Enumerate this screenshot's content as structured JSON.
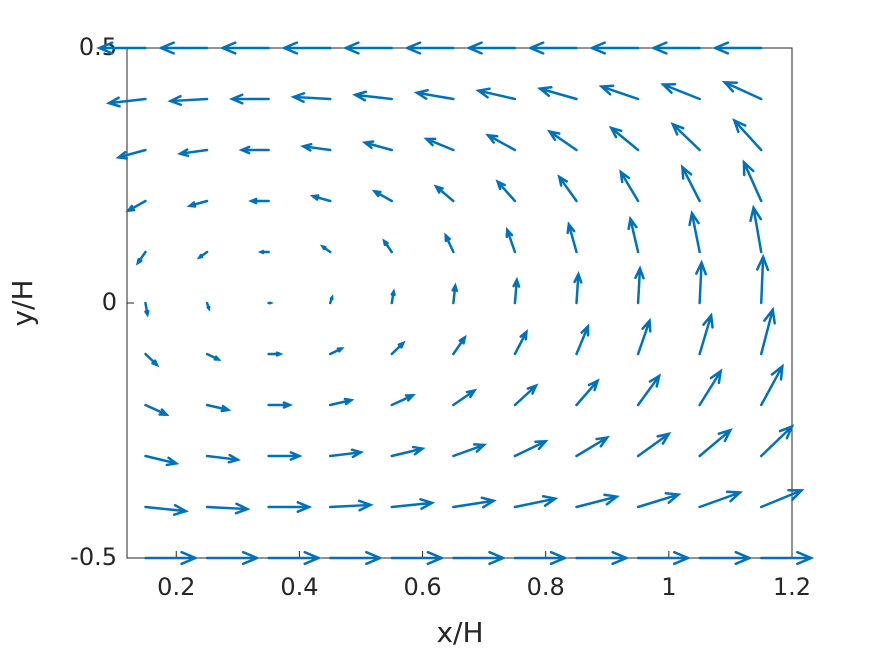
{
  "chart_data": {
    "type": "quiver",
    "xlabel": "x/H",
    "ylabel": "y/H",
    "color": "#0072bd",
    "xlim": [
      0.12,
      1.2
    ],
    "ylim": [
      -0.5,
      0.5
    ],
    "xticks": [
      0.2,
      0.4,
      0.6,
      0.8,
      1,
      1.2
    ],
    "yticks": [
      {
        "value": -0.5,
        "label": "-0.5"
      },
      0,
      0.5
    ],
    "x": [
      0.15,
      0.25,
      0.35,
      0.45,
      0.55,
      0.65,
      0.75,
      0.85,
      0.95,
      1.05,
      1.15
    ],
    "y": [
      0.5,
      0.4,
      0.3,
      0.2,
      0.1,
      0,
      -0.1,
      -0.2,
      -0.3,
      -0.4,
      -0.5
    ],
    "u": [
      [
        -0.96,
        -0.96,
        -0.96,
        -0.96,
        -0.96,
        -0.96,
        -0.96,
        -0.96,
        -0.96,
        -0.96,
        -0.96
      ],
      [
        -0.76,
        -0.76,
        -0.76,
        -0.76,
        -0.76,
        -0.76,
        -0.76,
        -0.76,
        -0.76,
        -0.76,
        -0.76
      ],
      [
        -0.56,
        -0.56,
        -0.56,
        -0.56,
        -0.56,
        -0.56,
        -0.56,
        -0.56,
        -0.56,
        -0.56,
        -0.56
      ],
      [
        -0.36,
        -0.36,
        -0.36,
        -0.36,
        -0.36,
        -0.36,
        -0.36,
        -0.36,
        -0.36,
        -0.36,
        -0.36
      ],
      [
        -0.16,
        -0.16,
        -0.16,
        -0.16,
        -0.16,
        -0.16,
        -0.16,
        -0.16,
        -0.16,
        -0.16,
        -0.16
      ],
      [
        0.04,
        0.04,
        0.04,
        0.04,
        0.04,
        0.04,
        0.04,
        0.04,
        0.04,
        0.04,
        0.04
      ],
      [
        0.24,
        0.24,
        0.24,
        0.24,
        0.24,
        0.24,
        0.24,
        0.24,
        0.24,
        0.24,
        0.24
      ],
      [
        0.44,
        0.44,
        0.44,
        0.44,
        0.44,
        0.44,
        0.44,
        0.44,
        0.44,
        0.44,
        0.44
      ],
      [
        0.64,
        0.64,
        0.64,
        0.64,
        0.64,
        0.64,
        0.64,
        0.64,
        0.64,
        0.64,
        0.64
      ],
      [
        0.84,
        0.84,
        0.84,
        0.84,
        0.84,
        0.84,
        0.84,
        0.84,
        0.84,
        0.84,
        0.84
      ],
      [
        1.04,
        1.04,
        1.04,
        1.04,
        1.04,
        1.04,
        1.04,
        1.04,
        1.04,
        1.04,
        1.04
      ]
    ],
    "v": [
      [
        0,
        0,
        0,
        0,
        0,
        0,
        0,
        0,
        0,
        0,
        0
      ],
      [
        -0.086,
        -0.043,
        0,
        0.043,
        0.086,
        0.13,
        0.173,
        0.216,
        0.259,
        0.302,
        0.346
      ],
      [
        -0.154,
        -0.077,
        0,
        0.077,
        0.154,
        0.23,
        0.307,
        0.384,
        0.461,
        0.538,
        0.614
      ],
      [
        -0.202,
        -0.101,
        0,
        0.101,
        0.202,
        0.302,
        0.403,
        0.504,
        0.605,
        0.706,
        0.806
      ],
      [
        -0.23,
        -0.115,
        0,
        0.115,
        0.23,
        0.346,
        0.461,
        0.576,
        0.691,
        0.806,
        0.922
      ],
      [
        -0.24,
        -0.12,
        0,
        0.12,
        0.24,
        0.36,
        0.48,
        0.6,
        0.72,
        0.84,
        0.96
      ],
      [
        -0.23,
        -0.115,
        0,
        0.115,
        0.23,
        0.346,
        0.461,
        0.576,
        0.691,
        0.806,
        0.922
      ],
      [
        -0.202,
        -0.101,
        0,
        0.101,
        0.202,
        0.302,
        0.403,
        0.504,
        0.605,
        0.706,
        0.806
      ],
      [
        -0.154,
        -0.077,
        0,
        0.077,
        0.154,
        0.23,
        0.307,
        0.384,
        0.461,
        0.538,
        0.614
      ],
      [
        -0.086,
        -0.043,
        0,
        0.043,
        0.086,
        0.13,
        0.173,
        0.216,
        0.259,
        0.302,
        0.346
      ],
      [
        0,
        0,
        0,
        0,
        0,
        0,
        0,
        0,
        0,
        0,
        0
      ]
    ]
  }
}
